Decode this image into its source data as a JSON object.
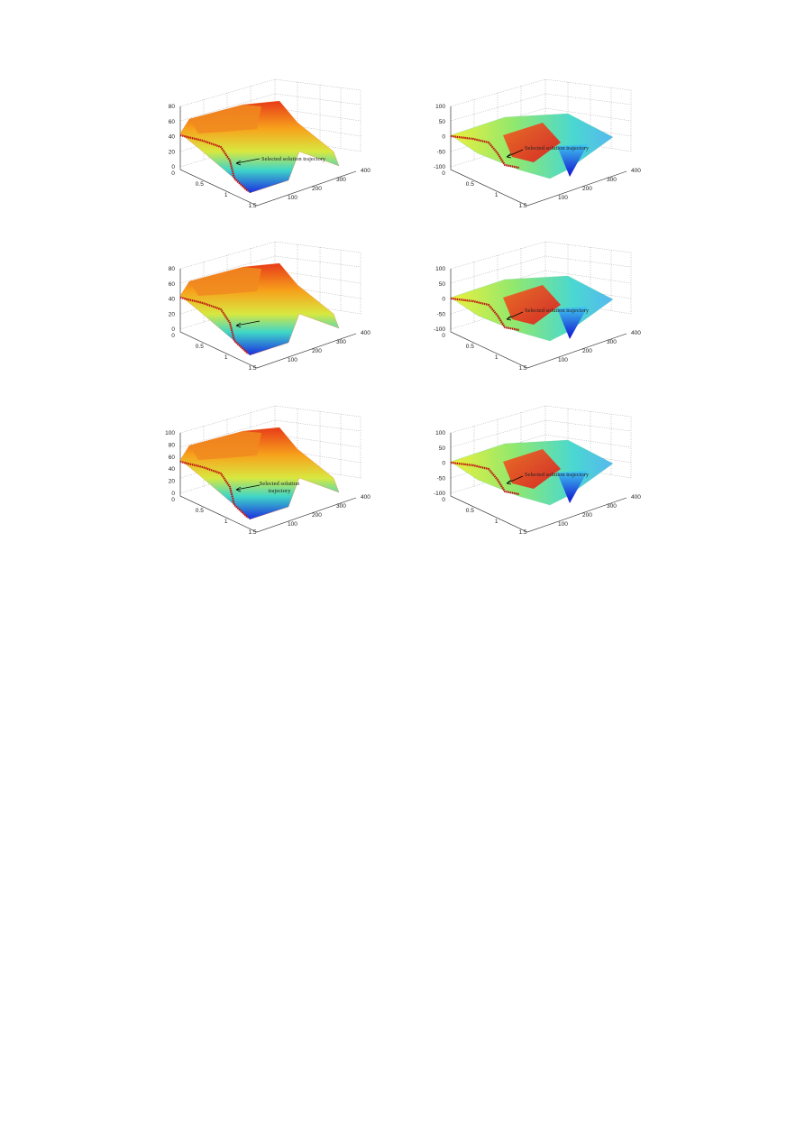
{
  "figures": [
    {
      "zticks": [
        0,
        20,
        40,
        60,
        80
      ],
      "xticks": [
        0,
        0.5,
        1,
        1.5
      ],
      "yticks": [
        100,
        200,
        300,
        400
      ],
      "annotation": [
        "Selected solution trajectory"
      ]
    },
    {
      "zticks": [
        -100,
        -50,
        0,
        50,
        100
      ],
      "xticks": [
        0,
        0.5,
        1,
        1.5
      ],
      "yticks": [
        100,
        200,
        300,
        400
      ],
      "annotation": [
        "Selected solution trajectory"
      ]
    },
    {
      "zticks": [
        0,
        20,
        40,
        60,
        80
      ],
      "xticks": [
        0,
        0.5,
        1,
        1.5
      ],
      "yticks": [
        100,
        200,
        300,
        400
      ],
      "annotation": []
    },
    {
      "zticks": [
        -100,
        -50,
        0,
        50,
        100
      ],
      "xticks": [
        0,
        0.5,
        1,
        1.5
      ],
      "yticks": [
        100,
        200,
        300,
        400
      ],
      "annotation": [
        "Selected solution trajectory"
      ]
    },
    {
      "zticks": [
        0,
        20,
        40,
        60,
        80,
        100
      ],
      "xticks": [
        0,
        0.5,
        1,
        1.5
      ],
      "yticks": [
        100,
        200,
        300,
        400
      ],
      "annotation": [
        "Selected solution",
        "trajectory"
      ]
    },
    {
      "zticks": [
        -100,
        -50,
        0,
        50,
        100
      ],
      "xticks": [
        0,
        0.5,
        1,
        1.5
      ],
      "yticks": [
        100,
        200,
        300,
        400
      ],
      "annotation": [
        "Selected solution trajectory"
      ]
    }
  ]
}
